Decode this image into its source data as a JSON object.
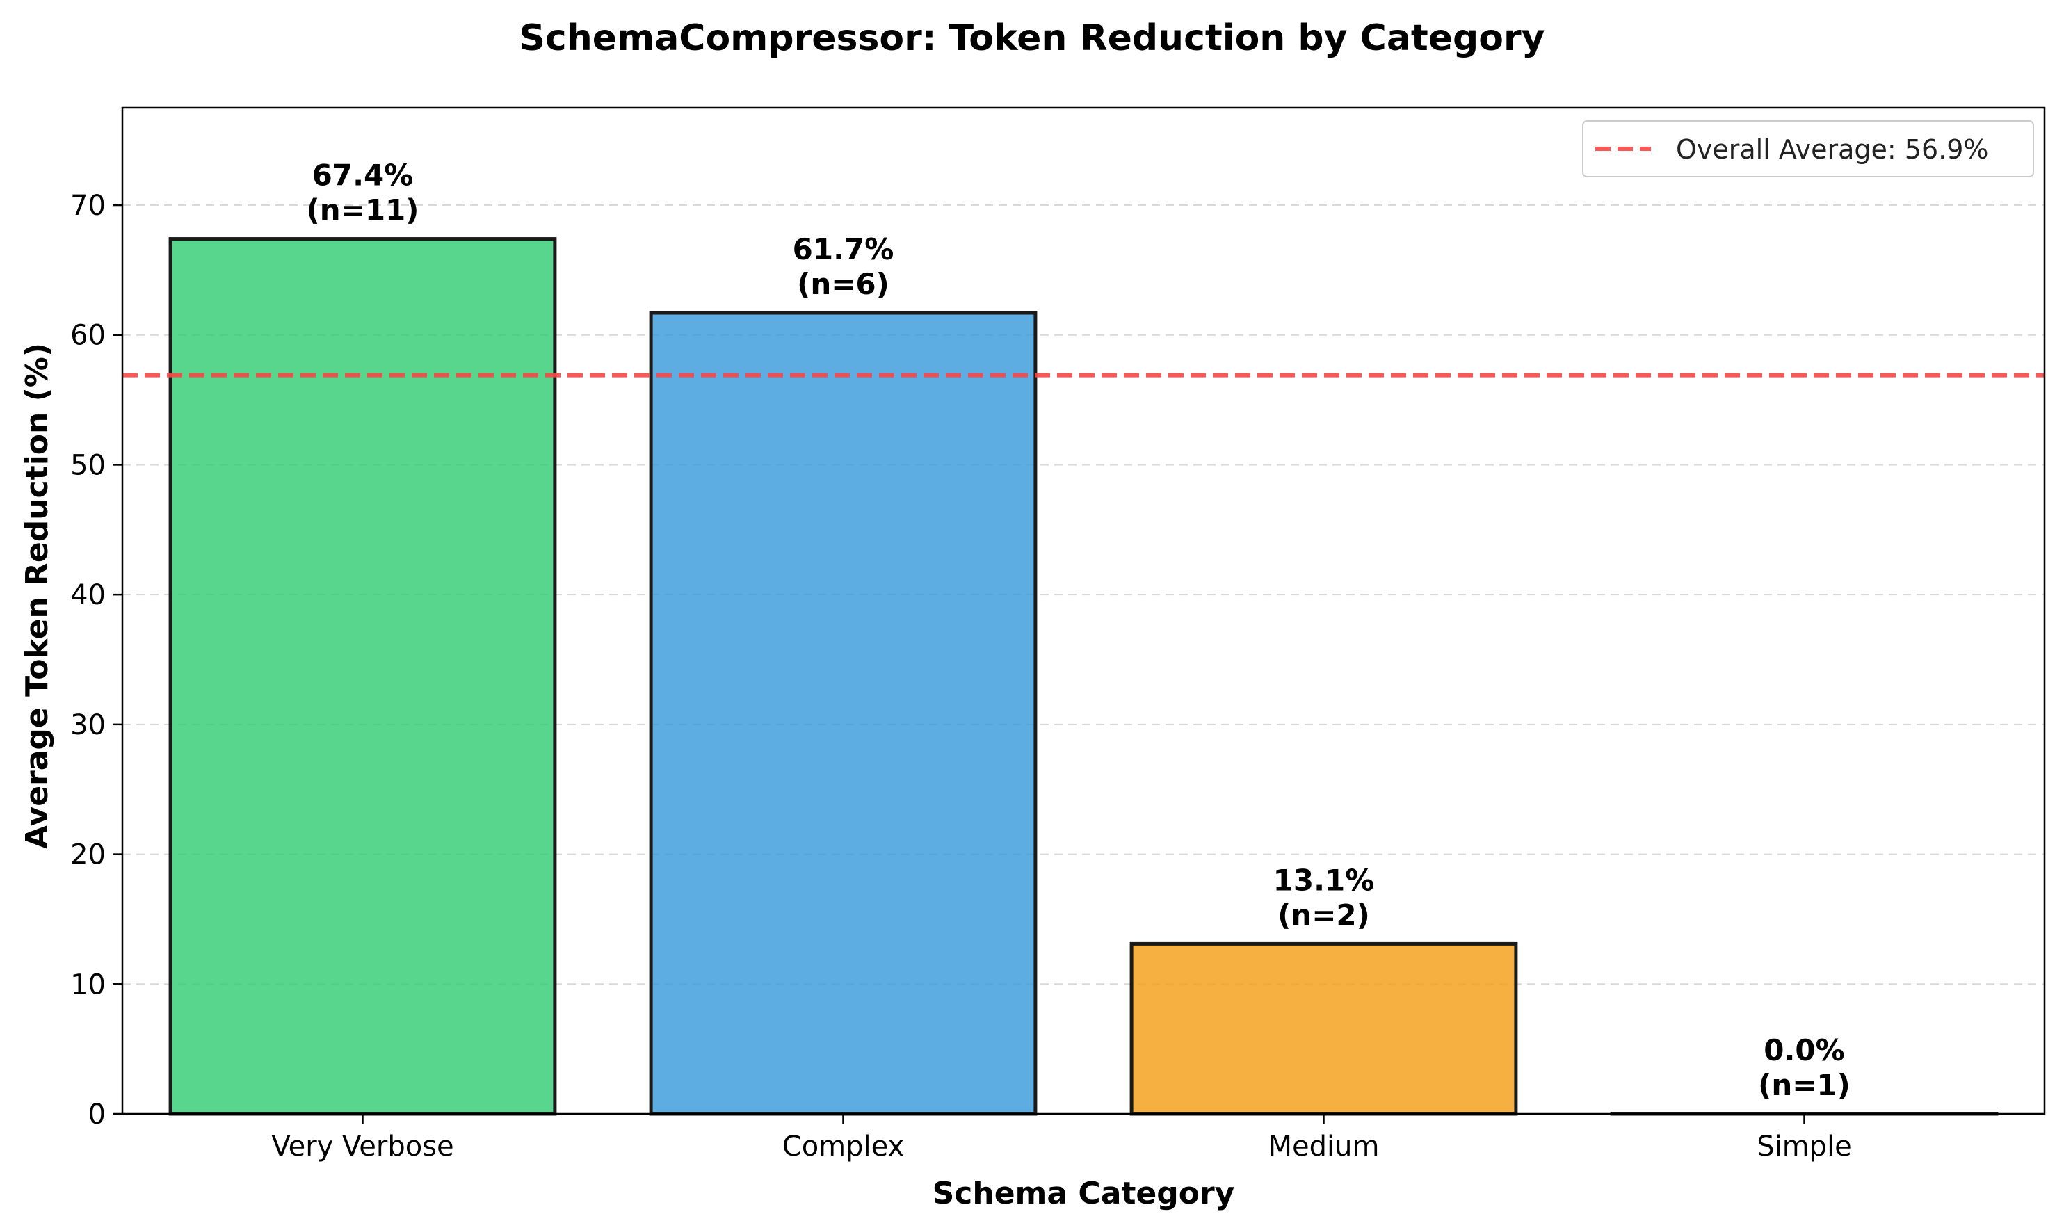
{
  "chart_data": {
    "type": "bar",
    "title": "SchemaCompressor: Token Reduction by Category",
    "xlabel": "Schema Category",
    "ylabel": "Average Token Reduction (%)",
    "categories": [
      "Very Verbose",
      "Complex",
      "Medium",
      "Simple"
    ],
    "values": [
      67.4,
      61.7,
      13.1,
      0.0
    ],
    "sample_sizes": [
      "(n=11)",
      "(n=6)",
      "(n=2)",
      "(n=1)"
    ],
    "value_labels": [
      "67.4%",
      "61.7%",
      "13.1%",
      "0.0%"
    ],
    "colors": [
      "#2ecc71",
      "#3498db",
      "#f39c12",
      "#e74c3c"
    ],
    "ylim": [
      0,
      77.5
    ],
    "yticks": [
      0,
      10,
      20,
      30,
      40,
      50,
      60,
      70
    ],
    "grid": "y-dashed",
    "reference_line": {
      "value": 56.9,
      "label": "Overall Average: 56.9%",
      "color": "#ff4444",
      "style": "dashed"
    },
    "legend_position": "top-right"
  }
}
